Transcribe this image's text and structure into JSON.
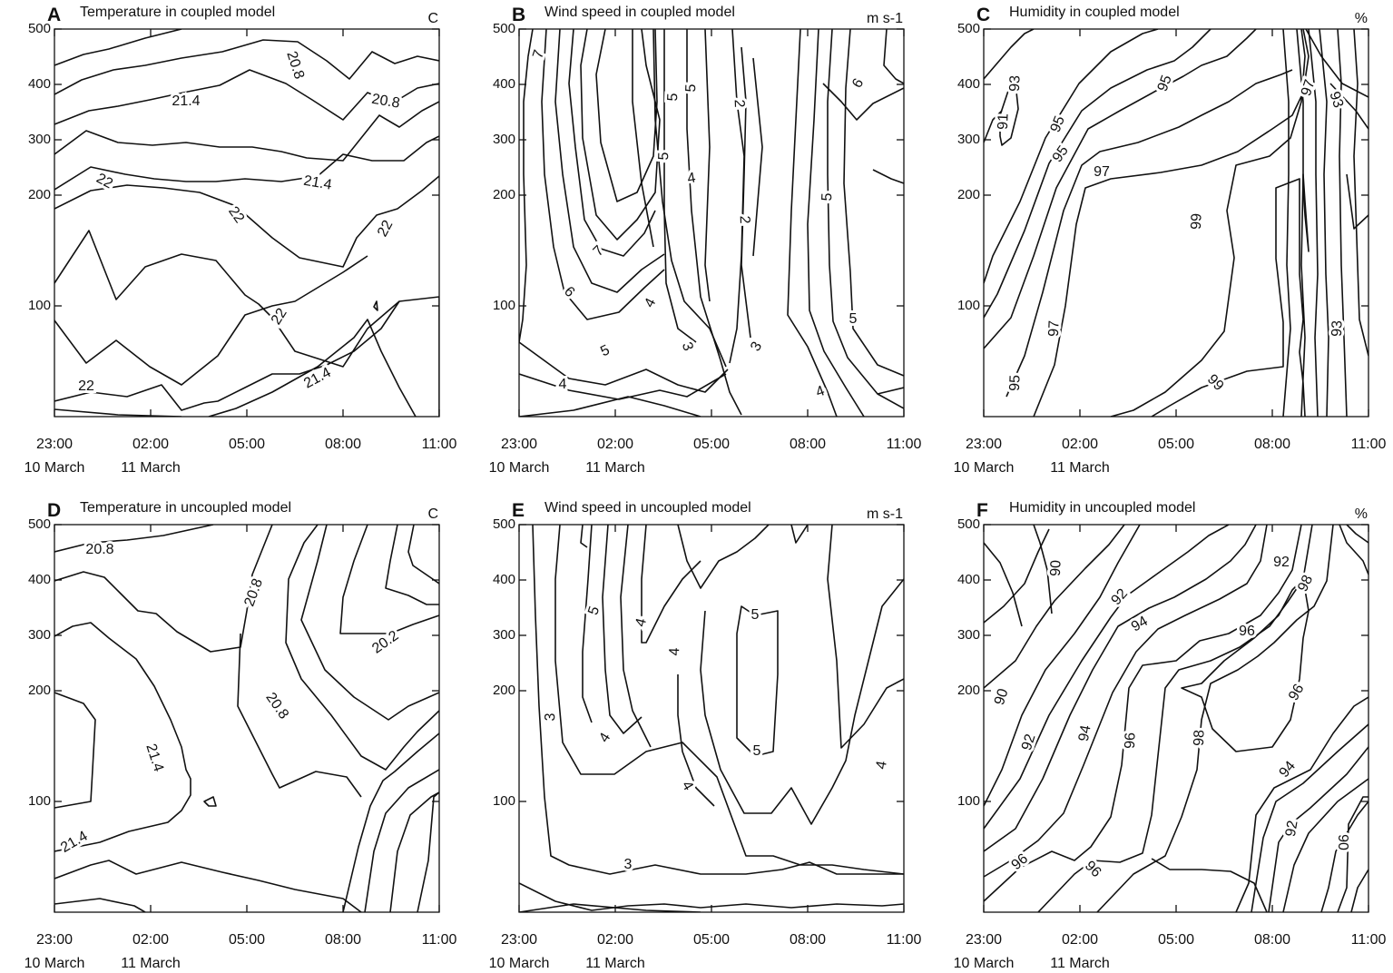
{
  "panels": [
    {
      "letter": "A",
      "title": "Temperature in coupled model",
      "unit": "C"
    },
    {
      "letter": "B",
      "title": "Wind speed in coupled model",
      "unit": "m s-1"
    },
    {
      "letter": "C",
      "title": "Humidity in coupled model",
      "unit": "%"
    },
    {
      "letter": "D",
      "title": "Temperature in uncoupled model",
      "unit": "C"
    },
    {
      "letter": "E",
      "title": "Wind speed in uncoupled model",
      "unit": "m s-1"
    },
    {
      "letter": "F",
      "title": "Humidity in uncoupled model",
      "unit": "%"
    }
  ],
  "axes": {
    "y_ticks": [
      "500",
      "400",
      "300",
      "200",
      "100"
    ],
    "x_ticks": [
      "23:00",
      "02:00",
      "05:00",
      "08:00",
      "11:00"
    ],
    "x_dates": [
      "10 March",
      "11 March"
    ]
  },
  "chart_data": [
    {
      "type": "contour",
      "title": "Temperature in coupled model",
      "unit": "C",
      "xlim": [
        "23:00",
        "11:00"
      ],
      "ylim": [
        0,
        500
      ],
      "contour_labels": [
        "20.8",
        "20.8",
        "21.4",
        "21.4",
        "22",
        "22",
        "22",
        "22",
        "22",
        "21.4"
      ]
    },
    {
      "type": "contour",
      "title": "Wind speed in coupled model",
      "unit": "m s-1",
      "xlim": [
        "23:00",
        "11:00"
      ],
      "ylim": [
        0,
        500
      ],
      "contour_labels": [
        "7",
        "5",
        "5",
        "6",
        "2",
        "5",
        "4",
        "2",
        "5",
        "7",
        "6",
        "4",
        "5",
        "3",
        "3",
        "5",
        "4",
        "4"
      ]
    },
    {
      "type": "contour",
      "title": "Humidity in coupled model",
      "unit": "%",
      "xlim": [
        "23:00",
        "11:00"
      ],
      "ylim": [
        0,
        500
      ],
      "contour_labels": [
        "93",
        "95",
        "95",
        "97",
        "91",
        "95",
        "97",
        "93",
        "99",
        "97",
        "93",
        "95",
        "99"
      ]
    },
    {
      "type": "contour",
      "title": "Temperature in uncoupled model",
      "unit": "C",
      "xlim": [
        "23:00",
        "11:00"
      ],
      "ylim": [
        0,
        500
      ],
      "contour_labels": [
        "20.8",
        "20.8",
        "20.2",
        "20.8",
        "21.4",
        "21.4"
      ]
    },
    {
      "type": "contour",
      "title": "Wind speed in uncoupled model",
      "unit": "m s-1",
      "xlim": [
        "23:00",
        "11:00"
      ],
      "ylim": [
        0,
        500
      ],
      "contour_labels": [
        "5",
        "4",
        "5",
        "4",
        "3",
        "4",
        "5",
        "4",
        "4",
        "3"
      ]
    },
    {
      "type": "contour",
      "title": "Humidity in uncoupled model",
      "unit": "%",
      "xlim": [
        "23:00",
        "11:00"
      ],
      "ylim": [
        0,
        500
      ],
      "contour_labels": [
        "90",
        "92",
        "92",
        "94",
        "96",
        "98",
        "90",
        "92",
        "94",
        "96",
        "98",
        "96",
        "94",
        "92",
        "90",
        "96",
        "96"
      ]
    }
  ]
}
